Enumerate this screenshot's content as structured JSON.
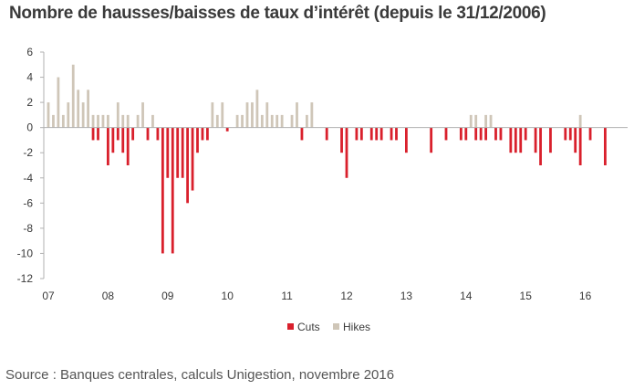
{
  "title": "Nombre de hausses/baisses de taux d’intérêt (depuis le 31/12/2006)",
  "source": "Source   : Banques centrales, calculs Unigestion, novembre 2016",
  "colors": {
    "cuts": "#d9202c",
    "hikes": "#cfc6b8",
    "axis": "#b0b0b0"
  },
  "chart_data": {
    "type": "bar",
    "title": "Nombre de hausses/baisses de taux d’intérêt (depuis le 31/12/2006)",
    "xlabel": "",
    "ylabel": "",
    "ylim": [
      -12,
      6
    ],
    "yticks": [
      6,
      4,
      2,
      0,
      -2,
      -4,
      -6,
      -8,
      -10,
      -12
    ],
    "x_tick_labels": [
      "07",
      "08",
      "09",
      "10",
      "11",
      "12",
      "13",
      "14",
      "15",
      "16"
    ],
    "x_unit": "month index since Jan 2007",
    "grid": false,
    "legend_position": "bottom",
    "series": [
      {
        "name": "Cuts",
        "values": [
          {
            "x": 9,
            "y": -1
          },
          {
            "x": 10,
            "y": -1
          },
          {
            "x": 12,
            "y": -3
          },
          {
            "x": 13,
            "y": -2
          },
          {
            "x": 14,
            "y": -1
          },
          {
            "x": 15,
            "y": -2
          },
          {
            "x": 16,
            "y": -3
          },
          {
            "x": 17,
            "y": -1
          },
          {
            "x": 20,
            "y": -1
          },
          {
            "x": 22,
            "y": -1
          },
          {
            "x": 23,
            "y": -10
          },
          {
            "x": 24,
            "y": -4
          },
          {
            "x": 25,
            "y": -10
          },
          {
            "x": 26,
            "y": -4
          },
          {
            "x": 27,
            "y": -4
          },
          {
            "x": 28,
            "y": -6
          },
          {
            "x": 29,
            "y": -5
          },
          {
            "x": 30,
            "y": -2
          },
          {
            "x": 31,
            "y": -1
          },
          {
            "x": 32,
            "y": -1
          },
          {
            "x": 36,
            "y": -0.3
          },
          {
            "x": 51,
            "y": -1
          },
          {
            "x": 56,
            "y": -1
          },
          {
            "x": 59,
            "y": -2
          },
          {
            "x": 60,
            "y": -4
          },
          {
            "x": 62,
            "y": -1
          },
          {
            "x": 63,
            "y": -1
          },
          {
            "x": 65,
            "y": -1
          },
          {
            "x": 66,
            "y": -1
          },
          {
            "x": 67,
            "y": -1
          },
          {
            "x": 69,
            "y": -1
          },
          {
            "x": 70,
            "y": -1
          },
          {
            "x": 72,
            "y": -2
          },
          {
            "x": 77,
            "y": -2
          },
          {
            "x": 80,
            "y": -1
          },
          {
            "x": 83,
            "y": -1
          },
          {
            "x": 84,
            "y": -1
          },
          {
            "x": 86,
            "y": -1
          },
          {
            "x": 87,
            "y": -1
          },
          {
            "x": 88,
            "y": -1
          },
          {
            "x": 90,
            "y": -1
          },
          {
            "x": 91,
            "y": -1
          },
          {
            "x": 93,
            "y": -2
          },
          {
            "x": 94,
            "y": -2
          },
          {
            "x": 95,
            "y": -2
          },
          {
            "x": 96,
            "y": -1
          },
          {
            "x": 98,
            "y": -2
          },
          {
            "x": 99,
            "y": -3
          },
          {
            "x": 101,
            "y": -2
          },
          {
            "x": 104,
            "y": -1
          },
          {
            "x": 105,
            "y": -1
          },
          {
            "x": 106,
            "y": -2
          },
          {
            "x": 107,
            "y": -3
          },
          {
            "x": 109,
            "y": -1
          },
          {
            "x": 112,
            "y": -3
          }
        ]
      },
      {
        "name": "Hikes",
        "values": [
          {
            "x": 0,
            "y": 2
          },
          {
            "x": 1,
            "y": 1
          },
          {
            "x": 2,
            "y": 4
          },
          {
            "x": 3,
            "y": 1
          },
          {
            "x": 4,
            "y": 2
          },
          {
            "x": 5,
            "y": 5
          },
          {
            "x": 6,
            "y": 3
          },
          {
            "x": 7,
            "y": 2
          },
          {
            "x": 8,
            "y": 3
          },
          {
            "x": 9,
            "y": 1
          },
          {
            "x": 10,
            "y": 1
          },
          {
            "x": 11,
            "y": 1
          },
          {
            "x": 12,
            "y": 1
          },
          {
            "x": 14,
            "y": 2
          },
          {
            "x": 15,
            "y": 1
          },
          {
            "x": 16,
            "y": 1
          },
          {
            "x": 18,
            "y": 1
          },
          {
            "x": 19,
            "y": 2
          },
          {
            "x": 21,
            "y": 1
          },
          {
            "x": 33,
            "y": 2
          },
          {
            "x": 34,
            "y": 1
          },
          {
            "x": 35,
            "y": 2
          },
          {
            "x": 38,
            "y": 1
          },
          {
            "x": 39,
            "y": 1
          },
          {
            "x": 40,
            "y": 2
          },
          {
            "x": 41,
            "y": 2
          },
          {
            "x": 42,
            "y": 3
          },
          {
            "x": 43,
            "y": 1
          },
          {
            "x": 44,
            "y": 2
          },
          {
            "x": 45,
            "y": 1
          },
          {
            "x": 46,
            "y": 1
          },
          {
            "x": 47,
            "y": 1
          },
          {
            "x": 49,
            "y": 1
          },
          {
            "x": 50,
            "y": 2
          },
          {
            "x": 52,
            "y": 1
          },
          {
            "x": 53,
            "y": 2
          },
          {
            "x": 85,
            "y": 1
          },
          {
            "x": 86,
            "y": 1
          },
          {
            "x": 88,
            "y": 1
          },
          {
            "x": 89,
            "y": 1
          },
          {
            "x": 107,
            "y": 1
          }
        ]
      }
    ]
  }
}
